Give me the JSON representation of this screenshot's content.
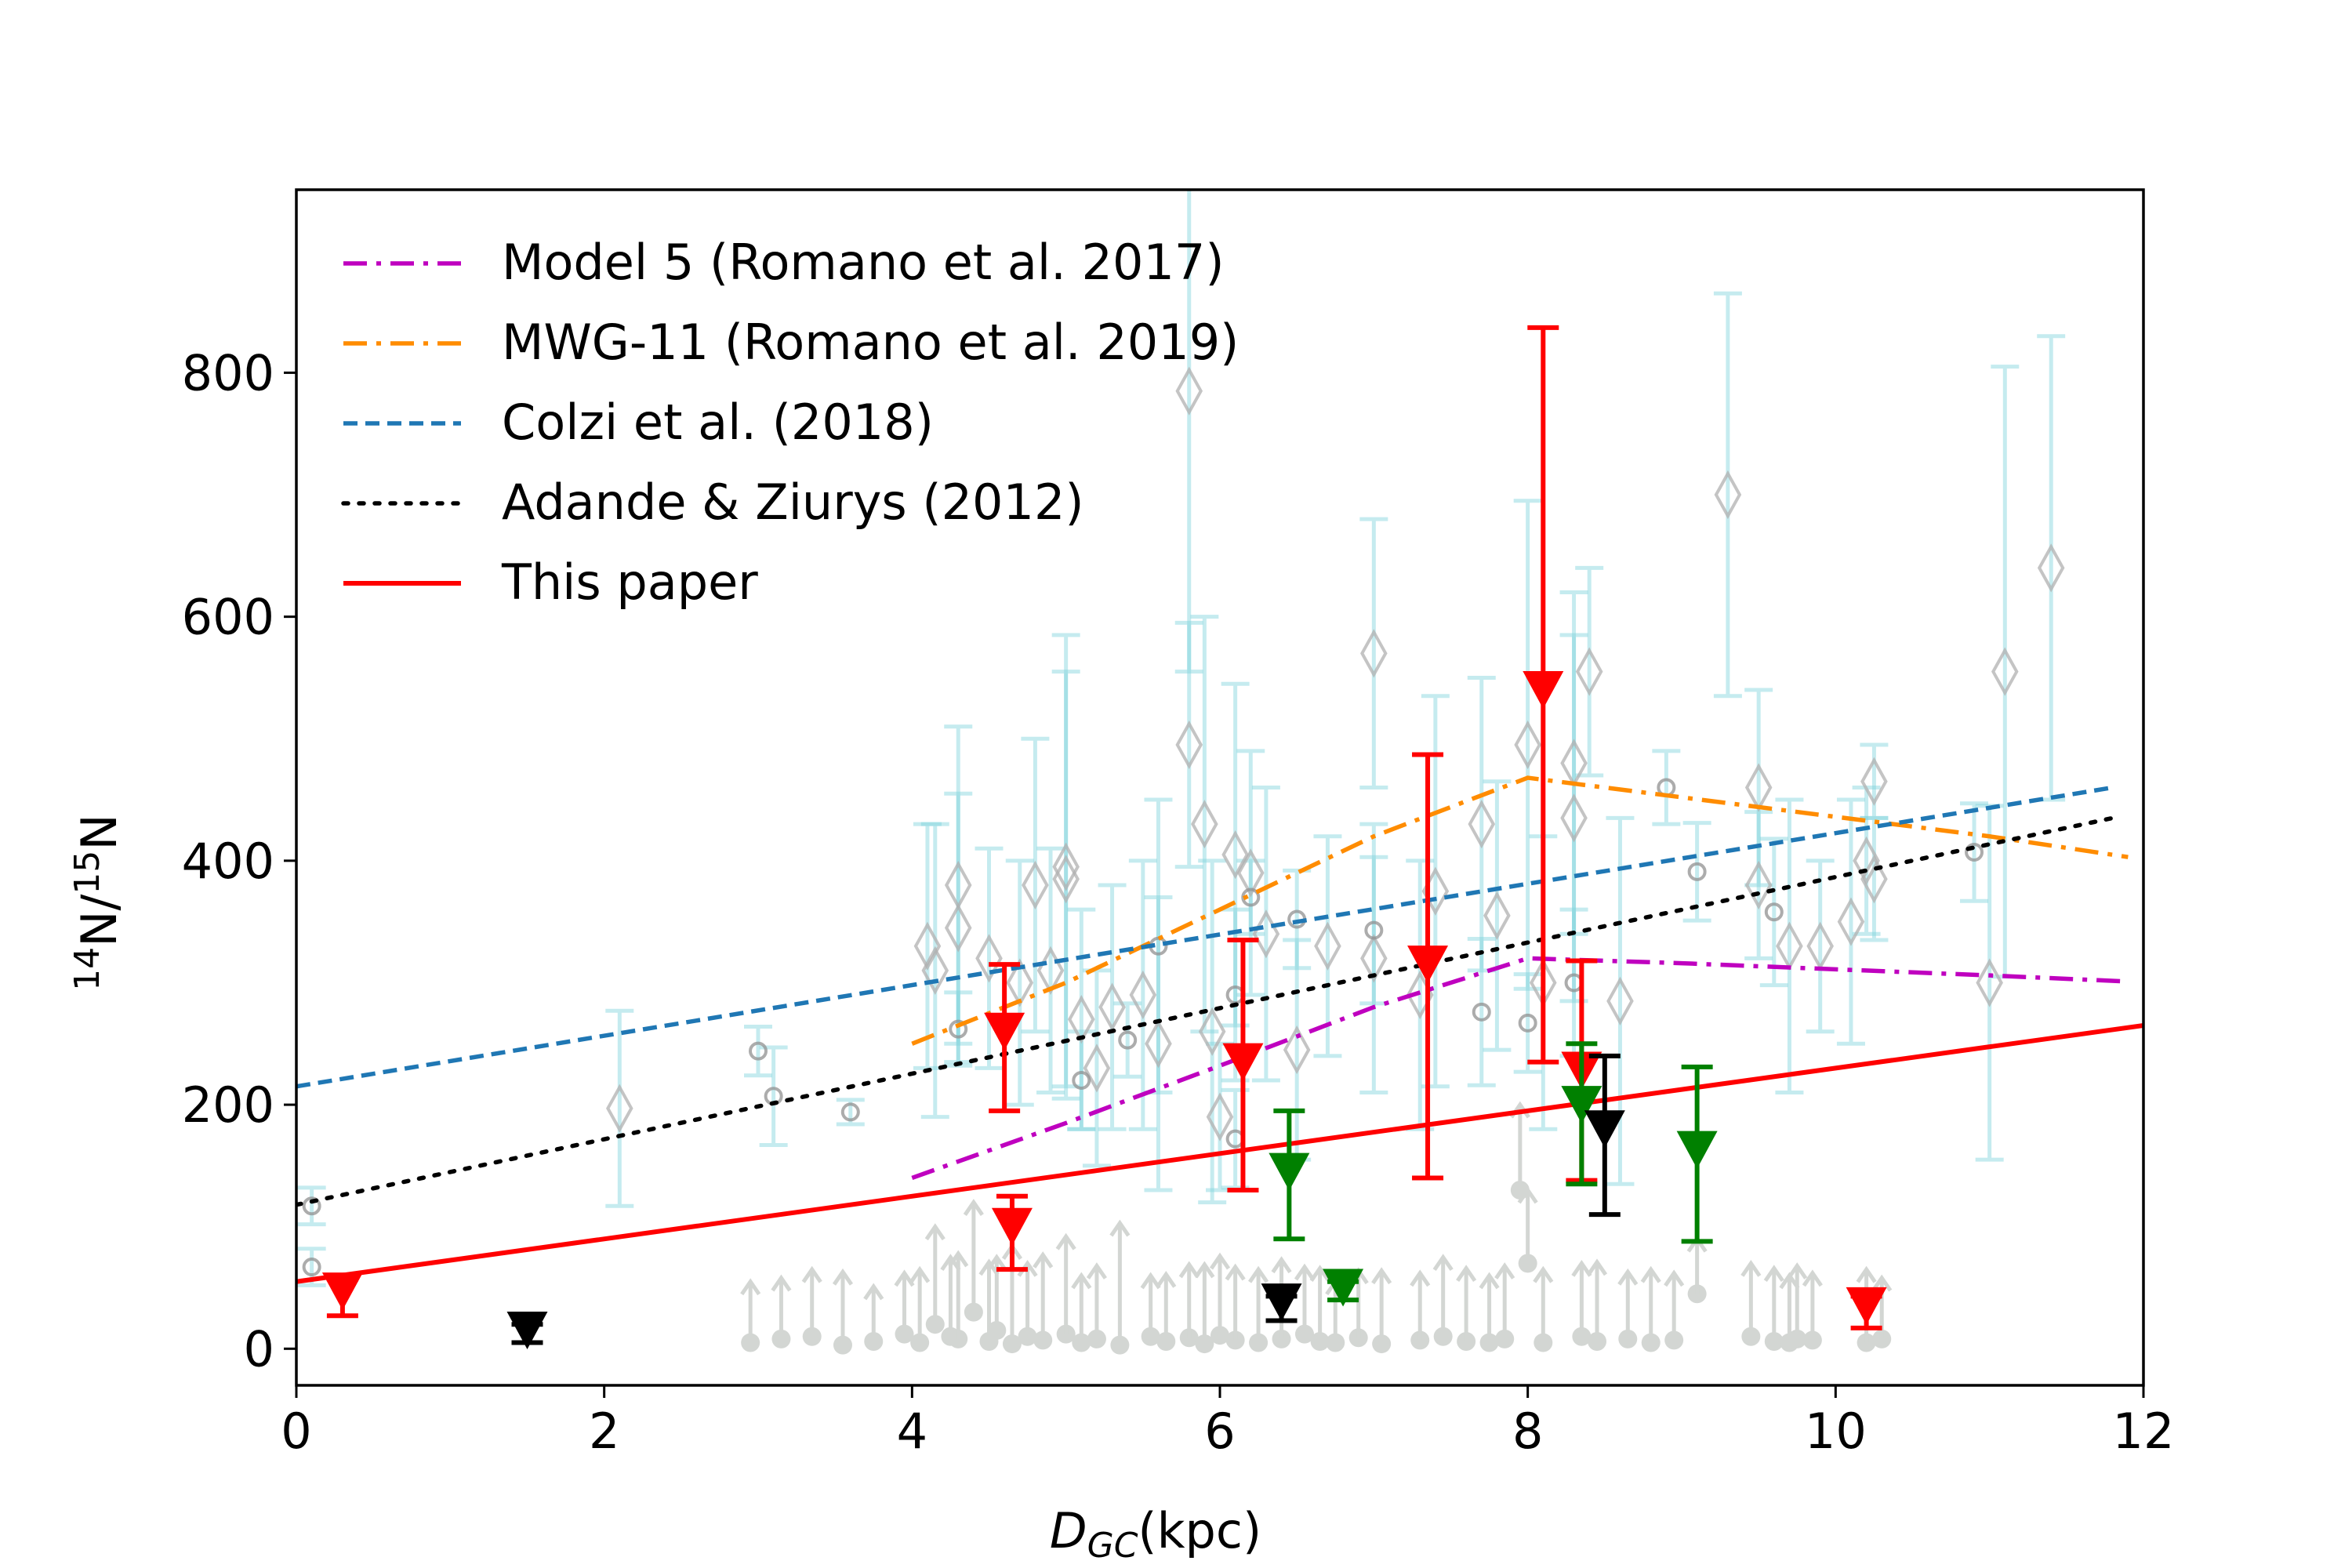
{
  "chart_data": {
    "type": "scatter",
    "title": "",
    "xlabel_italic": "D",
    "xlabel_sub": "GC",
    "xlabel_unit": "(kpc)",
    "ylabel_pre": "14",
    "ylabel_n1": "N/",
    "ylabel_sup2": "15",
    "ylabel_n2": "N",
    "xlim": [
      0,
      12
    ],
    "ylim": [
      -30,
      950
    ],
    "xticks": [
      0,
      2,
      4,
      6,
      8,
      10,
      12
    ],
    "yticks": [
      0,
      200,
      400,
      600,
      800
    ],
    "grid": false,
    "legend_position": "top-left",
    "legend": [
      {
        "label": "Model 5 (Romano et al. 2017)",
        "color": "#bf00bf",
        "style": "dashdot"
      },
      {
        "label": "MWG-11 (Romano et al. 2019)",
        "color": "#ff8c00",
        "style": "dashdot"
      },
      {
        "label": "Colzi et al. (2018)",
        "color": "#1f77b4",
        "style": "dashed"
      },
      {
        "label": "Adande & Ziurys (2012)",
        "color": "#000000",
        "style": "dotted"
      },
      {
        "label": "This paper",
        "color": "#ff0000",
        "style": "solid"
      }
    ],
    "lines": [
      {
        "name": "Model 5 (Romano et al. 2017)",
        "color": "#bf00bf",
        "style": "dashdot",
        "x": [
          4,
          5,
          6,
          7,
          8,
          9,
          10,
          11,
          11.9
        ],
        "y": [
          140,
          185,
          232,
          280,
          320,
          316,
          311,
          306,
          301
        ]
      },
      {
        "name": "MWG-11 (Romano et al. 2019)",
        "color": "#ff8c00",
        "style": "dashdot",
        "x": [
          4,
          5,
          6,
          7,
          8,
          9,
          10,
          11,
          11.9
        ],
        "y": [
          250,
          300,
          360,
          420,
          468,
          452,
          436,
          420,
          403
        ]
      },
      {
        "name": "Colzi et al. (2018)",
        "color": "#1f77b4",
        "style": "dashed",
        "x": [
          0,
          11.8
        ],
        "y": [
          215,
          460
        ]
      },
      {
        "name": "Adande & Ziurys (2012)",
        "color": "#000000",
        "style": "dotted",
        "x": [
          0,
          11.8
        ],
        "y": [
          118,
          435
        ]
      },
      {
        "name": "This paper",
        "color": "#ff0000",
        "style": "solid",
        "x": [
          0,
          12
        ],
        "y": [
          55,
          265
        ]
      }
    ],
    "literature_diamonds": {
      "color": "#b0b0b0",
      "errorbar_color": "#7fd4dd",
      "points": [
        [
          2.1,
          197,
          80
        ],
        [
          4.1,
          330,
          100
        ],
        [
          4.15,
          310,
          120
        ],
        [
          4.3,
          380,
          130
        ],
        [
          4.3,
          345,
          110
        ],
        [
          4.5,
          320,
          90
        ],
        [
          4.7,
          300,
          100
        ],
        [
          4.8,
          380,
          120
        ],
        [
          4.9,
          310,
          100
        ],
        [
          5.0,
          395,
          190
        ],
        [
          5.0,
          385,
          170
        ],
        [
          5.1,
          270,
          90
        ],
        [
          5.2,
          230,
          80
        ],
        [
          5.3,
          280,
          100
        ],
        [
          5.5,
          290,
          110
        ],
        [
          5.6,
          250,
          120
        ],
        [
          5.8,
          785,
          230
        ],
        [
          5.8,
          495,
          100
        ],
        [
          5.9,
          430,
          170
        ],
        [
          5.95,
          260,
          140
        ],
        [
          6.0,
          190,
          60
        ],
        [
          6.1,
          405,
          140
        ],
        [
          6.2,
          390,
          100
        ],
        [
          6.3,
          340,
          120
        ],
        [
          6.5,
          245,
          90
        ],
        [
          6.7,
          330,
          90
        ],
        [
          7.0,
          570,
          110
        ],
        [
          7.0,
          320,
          110
        ],
        [
          7.3,
          290,
          110
        ],
        [
          7.4,
          375,
          160
        ],
        [
          7.7,
          430,
          120
        ],
        [
          7.8,
          355,
          110
        ],
        [
          8.0,
          495,
          200
        ],
        [
          8.1,
          300,
          120
        ],
        [
          8.3,
          435,
          150
        ],
        [
          8.3,
          480,
          140
        ],
        [
          8.4,
          555,
          85
        ],
        [
          8.6,
          285,
          150
        ],
        [
          9.3,
          700,
          165
        ],
        [
          9.5,
          460,
          80
        ],
        [
          9.5,
          380,
          60
        ],
        [
          9.7,
          330,
          120
        ],
        [
          9.9,
          330,
          70
        ],
        [
          10.1,
          350,
          100
        ],
        [
          10.2,
          400,
          60
        ],
        [
          10.25,
          465,
          30
        ],
        [
          10.25,
          385,
          50
        ],
        [
          11.0,
          300,
          145
        ],
        [
          11.1,
          555,
          250
        ],
        [
          11.4,
          640,
          190
        ]
      ]
    },
    "literature_circles": {
      "color": "#909090",
      "errorbar_color": "#7fd4dd",
      "points": [
        [
          0.1,
          117,
          15
        ],
        [
          0.1,
          67,
          15
        ],
        [
          3.0,
          244,
          20
        ],
        [
          3.1,
          207,
          40
        ],
        [
          3.6,
          194,
          10
        ],
        [
          4.3,
          262,
          30
        ],
        [
          5.1,
          220,
          40
        ],
        [
          5.4,
          253,
          30
        ],
        [
          5.6,
          330,
          120
        ],
        [
          6.1,
          290,
          70
        ],
        [
          6.1,
          172,
          40
        ],
        [
          6.2,
          370,
          30
        ],
        [
          6.5,
          352,
          40
        ],
        [
          7.0,
          343,
          60
        ],
        [
          7.7,
          276,
          60
        ],
        [
          8.0,
          267,
          40
        ],
        [
          8.3,
          300,
          60
        ],
        [
          8.9,
          460,
          30
        ],
        [
          9.1,
          391,
          40
        ],
        [
          9.6,
          358,
          60
        ],
        [
          10.9,
          407,
          40
        ]
      ]
    },
    "lower_limit_arrows": {
      "color": "#d3d6d3",
      "x": [
        2.95,
        3.15,
        3.35,
        3.55,
        3.75,
        3.95,
        4.05,
        4.15,
        4.25,
        4.3,
        4.4,
        4.5,
        4.55,
        4.65,
        4.75,
        4.85,
        5.0,
        5.1,
        5.2,
        5.35,
        5.55,
        5.65,
        5.8,
        5.9,
        6.0,
        6.1,
        6.25,
        6.4,
        6.55,
        6.65,
        6.75,
        6.9,
        7.05,
        7.3,
        7.45,
        7.6,
        7.75,
        7.85,
        7.95,
        8.0,
        8.1,
        8.35,
        8.45,
        8.65,
        8.8,
        8.95,
        9.1,
        9.45,
        9.6,
        9.7,
        9.75,
        9.85,
        10.2,
        10.3
      ],
      "y": [
        5,
        8,
        10,
        3,
        6,
        12,
        5,
        20,
        10,
        8,
        30,
        6,
        15,
        4,
        10,
        7,
        12,
        5,
        8,
        3,
        10,
        6,
        9,
        4,
        11,
        7,
        5,
        8,
        12,
        6,
        5,
        9,
        4,
        7,
        10,
        6,
        5,
        8,
        130,
        70,
        5,
        10,
        6,
        8,
        5,
        7,
        45,
        10,
        6,
        5,
        8,
        7,
        5,
        8
      ],
      "heights": [
        50,
        50,
        55,
        60,
        45,
        50,
        60,
        80,
        65,
        70,
        90,
        65,
        60,
        80,
        60,
        70,
        80,
        55,
        60,
        100,
        50,
        55,
        60,
        65,
        65,
        60,
        60,
        65,
        55,
        60,
        50,
        55,
        60,
        55,
        65,
        60,
        55,
        60,
        70,
        60,
        60,
        60,
        65,
        55,
        60,
        55,
        45,
        60,
        60,
        55,
        60,
        55,
        60,
        50
      ]
    },
    "this_paper_red": {
      "color": "#ff0000",
      "points": [
        {
          "x": 0.3,
          "y": 47,
          "err_low": 20,
          "err_high": 10
        },
        {
          "x": 4.6,
          "y": 260,
          "err_low": 65,
          "err_high": 55
        },
        {
          "x": 4.65,
          "y": 100,
          "err_low": 35,
          "err_high": 25
        },
        {
          "x": 6.15,
          "y": 235,
          "err_low": 105,
          "err_high": 100
        },
        {
          "x": 7.35,
          "y": 315,
          "err_low": 175,
          "err_high": 172
        },
        {
          "x": 8.1,
          "y": 540,
          "err_low": 305,
          "err_high": 297
        },
        {
          "x": 8.35,
          "y": 228,
          "err_low": 90,
          "err_high": 90
        },
        {
          "x": 10.2,
          "y": 35,
          "err_low": 18,
          "err_high": 8
        }
      ]
    },
    "this_paper_green": {
      "color": "#008000",
      "points": [
        {
          "x": 6.45,
          "y": 145,
          "err_low": 55,
          "err_high": 50
        },
        {
          "x": 6.8,
          "y": 50,
          "err_low": 10,
          "err_high": 5
        },
        {
          "x": 8.35,
          "y": 200,
          "err_low": 65,
          "err_high": 50
        },
        {
          "x": 9.1,
          "y": 163,
          "err_low": 75,
          "err_high": 68
        }
      ]
    },
    "this_paper_black": {
      "color": "#000000",
      "points": [
        {
          "x": 1.5,
          "y": 15,
          "err_low": 10,
          "err_high": 5
        },
        {
          "x": 6.4,
          "y": 38,
          "err_low": 15,
          "err_high": 5
        },
        {
          "x": 8.5,
          "y": 180,
          "err_low": 70,
          "err_high": 60
        }
      ]
    }
  }
}
